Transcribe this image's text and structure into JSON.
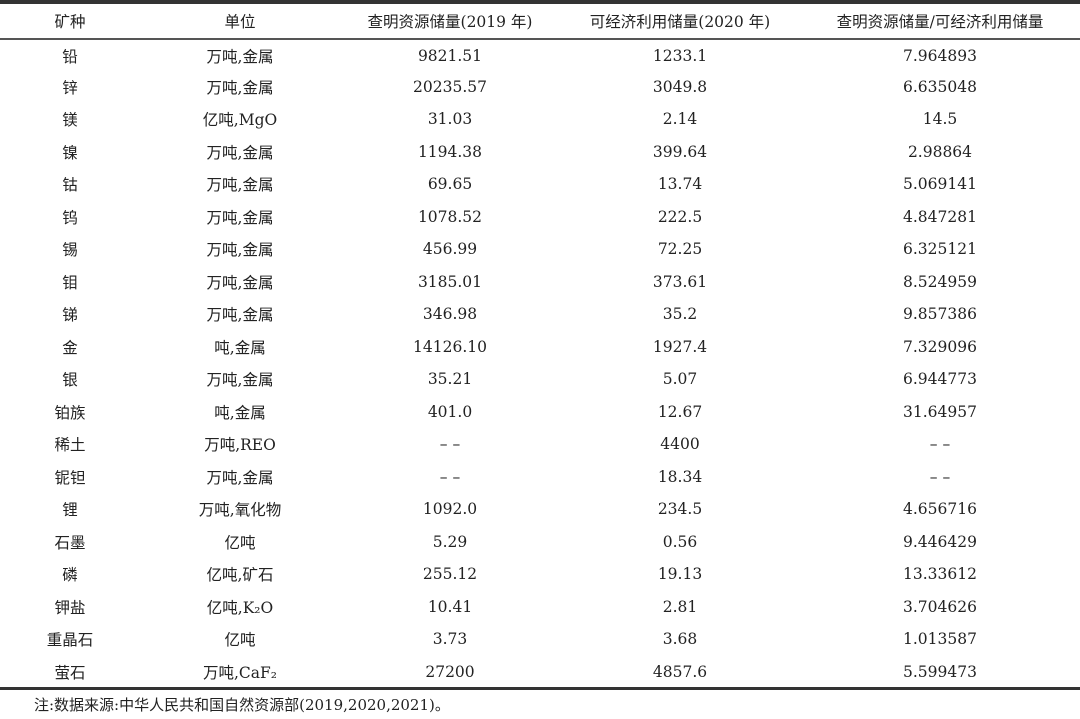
{
  "table": {
    "headers": [
      "矿种",
      "单位",
      "查明资源储量(2019 年)",
      "可经济利用储量(2020 年)",
      "查明资源储量/可经济利用储量"
    ],
    "rows": [
      [
        "铅",
        "万吨,金属",
        "9821.51",
        "1233.1",
        "7.964893"
      ],
      [
        "锌",
        "万吨,金属",
        "20235.57",
        "3049.8",
        "6.635048"
      ],
      [
        "镁",
        "亿吨,MgO",
        "31.03",
        "2.14",
        "14.5"
      ],
      [
        "镍",
        "万吨,金属",
        "1194.38",
        "399.64",
        "2.98864"
      ],
      [
        "钴",
        "万吨,金属",
        "69.65",
        "13.74",
        "5.069141"
      ],
      [
        "钨",
        "万吨,金属",
        "1078.52",
        "222.5",
        "4.847281"
      ],
      [
        "锡",
        "万吨,金属",
        "456.99",
        "72.25",
        "6.325121"
      ],
      [
        "钼",
        "万吨,金属",
        "3185.01",
        "373.61",
        "8.524959"
      ],
      [
        "锑",
        "万吨,金属",
        "346.98",
        "35.2",
        "9.857386"
      ],
      [
        "金",
        "吨,金属",
        "14126.10",
        "1927.4",
        "7.329096"
      ],
      [
        "银",
        "万吨,金属",
        "35.21",
        "5.07",
        "6.944773"
      ],
      [
        "铂族",
        "吨,金属",
        "401.0",
        "12.67",
        "31.64957"
      ],
      [
        "稀土",
        "万吨,REO",
        "– –",
        "4400",
        "– –"
      ],
      [
        "铌钽",
        "万吨,金属",
        "– –",
        "18.34",
        "– –"
      ],
      [
        "锂",
        "万吨,氧化物",
        "1092.0",
        "234.5",
        "4.656716"
      ],
      [
        "石墨",
        "亿吨",
        "5.29",
        "0.56",
        "9.446429"
      ],
      [
        "磷",
        "亿吨,矿石",
        "255.12",
        "19.13",
        "13.33612"
      ],
      [
        "钾盐",
        "亿吨,K₂O",
        "10.41",
        "2.81",
        "3.704626"
      ],
      [
        "重晶石",
        "亿吨",
        "3.73",
        "3.68",
        "1.013587"
      ],
      [
        "萤石",
        "万吨,CaF₂",
        "27200",
        "4857.6",
        "5.599473"
      ]
    ]
  },
  "note": "注:数据来源:中华人民共和国自然资源部(2019,2020,2021)。"
}
